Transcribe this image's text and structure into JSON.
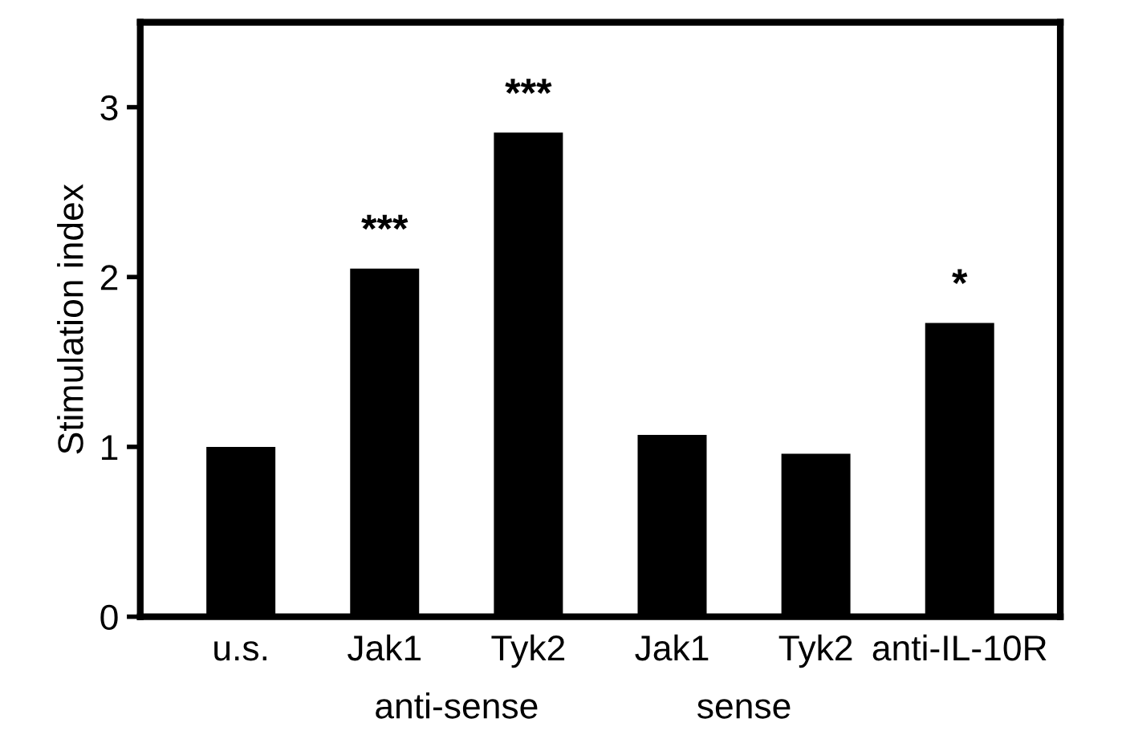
{
  "chart_data": {
    "type": "bar",
    "ylabel": "Stimulation index",
    "categories": [
      "u.s.",
      "Jak1",
      "Tyk2",
      "Jak1",
      "Tyk2",
      "anti-IL-10R"
    ],
    "values": [
      1.0,
      2.05,
      2.85,
      1.07,
      0.96,
      1.73
    ],
    "value_labels": [
      null,
      "***",
      "***",
      null,
      null,
      "*"
    ],
    "color": "#000000",
    "ylim": [
      0,
      3.5
    ],
    "yticks": [
      0,
      1,
      2,
      3
    ],
    "grid": false,
    "annotations": [
      "anti-sense",
      "sense"
    ]
  }
}
